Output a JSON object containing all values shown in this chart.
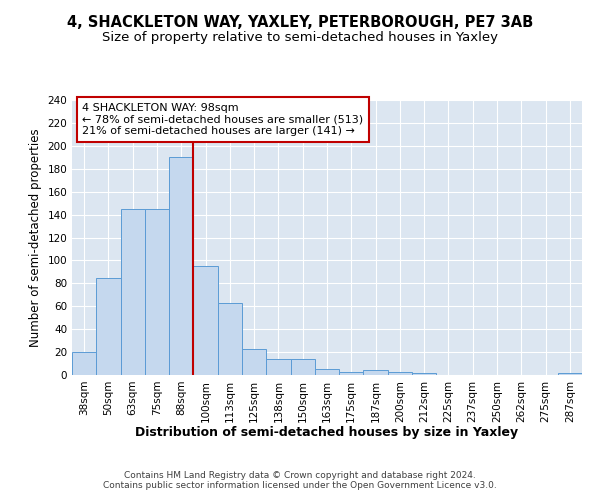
{
  "title_line1": "4, SHACKLETON WAY, YAXLEY, PETERBOROUGH, PE7 3AB",
  "title_line2": "Size of property relative to semi-detached houses in Yaxley",
  "xlabel": "Distribution of semi-detached houses by size in Yaxley",
  "ylabel": "Number of semi-detached properties",
  "footer": "Contains HM Land Registry data © Crown copyright and database right 2024.\nContains public sector information licensed under the Open Government Licence v3.0.",
  "categories": [
    "38sqm",
    "50sqm",
    "63sqm",
    "75sqm",
    "88sqm",
    "100sqm",
    "113sqm",
    "125sqm",
    "138sqm",
    "150sqm",
    "163sqm",
    "175sqm",
    "187sqm",
    "200sqm",
    "212sqm",
    "225sqm",
    "237sqm",
    "250sqm",
    "262sqm",
    "275sqm",
    "287sqm"
  ],
  "values": [
    20,
    85,
    145,
    145,
    190,
    95,
    63,
    23,
    14,
    14,
    5,
    3,
    4,
    3,
    2,
    0,
    0,
    0,
    0,
    0,
    2
  ],
  "bar_color": "#c5d8ee",
  "bar_edge_color": "#5b9bd5",
  "vline_color": "#c00000",
  "annotation_text": "4 SHACKLETON WAY: 98sqm\n← 78% of semi-detached houses are smaller (513)\n21% of semi-detached houses are larger (141) →",
  "annotation_box_color": "#c00000",
  "background_color": "#ffffff",
  "plot_bg_color": "#dce6f1",
  "ylim": [
    0,
    240
  ],
  "yticks": [
    0,
    20,
    40,
    60,
    80,
    100,
    120,
    140,
    160,
    180,
    200,
    220,
    240
  ],
  "grid_color": "#ffffff",
  "title_fontsize": 10.5,
  "subtitle_fontsize": 9.5,
  "tick_fontsize": 7.5,
  "ylabel_fontsize": 8.5,
  "xlabel_fontsize": 9
}
